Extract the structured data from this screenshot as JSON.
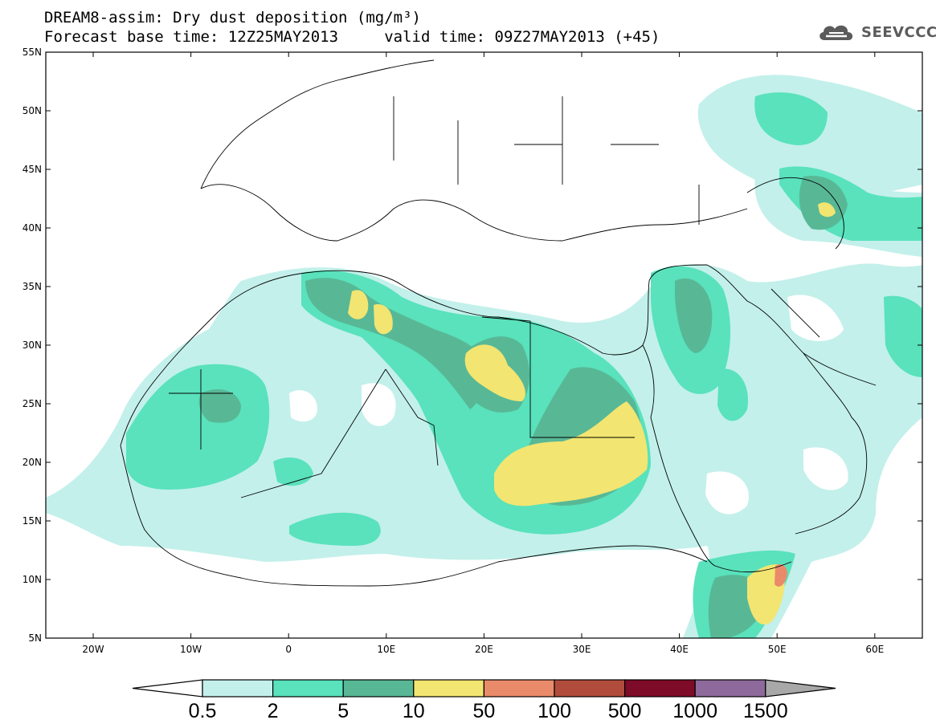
{
  "header": {
    "title_line1": "DREAM8-assim: Dry dust deposition (mg/m³)",
    "title_line2": "Forecast base time: 12Z25MAY2013     valid time: 09Z27MAY2013 (+45)",
    "logo_text": "SEEVCCC",
    "logo_icon": "cloud-icon"
  },
  "axes": {
    "lat_labels": [
      "55N",
      "50N",
      "45N",
      "40N",
      "35N",
      "30N",
      "25N",
      "20N",
      "15N",
      "10N",
      "5N"
    ],
    "lon_labels": [
      "20W",
      "10W",
      "0",
      "10E",
      "20E",
      "30E",
      "40E",
      "50E",
      "60E"
    ]
  },
  "legend": {
    "labels": [
      "0.5",
      "2",
      "5",
      "10",
      "50",
      "100",
      "500",
      "1000",
      "1500"
    ],
    "colors": [
      "#c3f0ea",
      "#59e2bc",
      "#58b896",
      "#f2e571",
      "#e98b6a",
      "#b14c3c",
      "#7e0b27",
      "#8d6a9b",
      "#a8a8a8"
    ]
  },
  "colors": {
    "level_05": "#c3f0ea",
    "level_2": "#59e2bc",
    "level_5": "#58b896",
    "level_10": "#f2e571",
    "level_50": "#e98b6a"
  }
}
